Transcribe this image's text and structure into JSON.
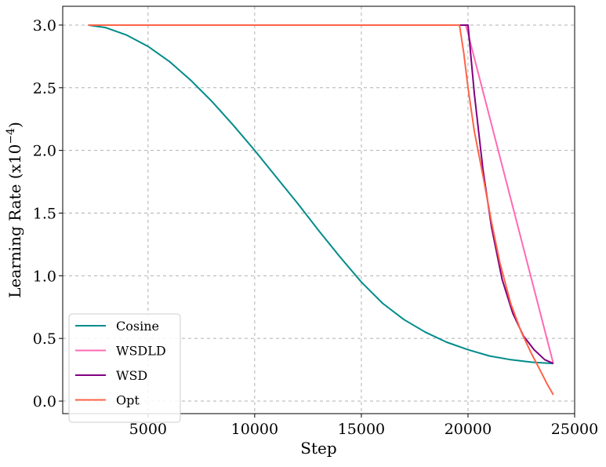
{
  "chart_data": {
    "type": "line",
    "xlabel": "Step",
    "ylabel": "Learning Rate (x10",
    "ylabel_exponent": "−4",
    "ylabel_suffix": ")",
    "xlim": [
      1000,
      25000
    ],
    "ylim": [
      -0.1,
      3.15
    ],
    "x_ticks": [
      5000,
      10000,
      15000,
      20000,
      25000
    ],
    "x_tick_labels": [
      "5000",
      "10000",
      "15000",
      "20000",
      "25000"
    ],
    "y_ticks": [
      0.0,
      0.5,
      1.0,
      1.5,
      2.0,
      2.5,
      3.0
    ],
    "y_tick_labels": [
      "0.0",
      "0.5",
      "1.0",
      "1.5",
      "2.0",
      "2.5",
      "3.0"
    ],
    "grid": true,
    "legend_position": "lower-left",
    "series": [
      {
        "name": "Cosine",
        "color": "#008b8b",
        "x": [
          2200,
          3000,
          4000,
          5000,
          6000,
          7000,
          8000,
          9000,
          10000,
          11000,
          12000,
          13000,
          14000,
          15000,
          16000,
          17000,
          18000,
          19000,
          20000,
          21000,
          22000,
          23000,
          24000
        ],
        "y": [
          3.0,
          2.98,
          2.92,
          2.83,
          2.71,
          2.56,
          2.39,
          2.2,
          2.0,
          1.79,
          1.58,
          1.36,
          1.15,
          0.95,
          0.78,
          0.65,
          0.55,
          0.47,
          0.41,
          0.36,
          0.33,
          0.31,
          0.3
        ]
      },
      {
        "name": "WSDLD",
        "color": "#ff69b4",
        "x": [
          2200,
          19900,
          24000
        ],
        "y": [
          3.0,
          3.0,
          0.3
        ]
      },
      {
        "name": "WSD",
        "color": "#800080",
        "x": [
          2200,
          20000,
          20300,
          20700,
          21100,
          21600,
          22100,
          22600,
          23100,
          23600,
          24000
        ],
        "y": [
          3.0,
          3.0,
          2.45,
          1.85,
          1.39,
          0.97,
          0.7,
          0.52,
          0.41,
          0.33,
          0.3
        ]
      },
      {
        "name": "Opt",
        "color": "#ff6347",
        "x": [
          2200,
          19600,
          19800,
          20000,
          20300,
          20700,
          21100,
          21500,
          22000,
          22500,
          23000,
          23400,
          23700,
          24000
        ],
        "y": [
          3.0,
          3.0,
          2.78,
          2.5,
          2.15,
          1.8,
          1.43,
          1.1,
          0.78,
          0.55,
          0.37,
          0.24,
          0.14,
          0.05
        ]
      }
    ]
  }
}
